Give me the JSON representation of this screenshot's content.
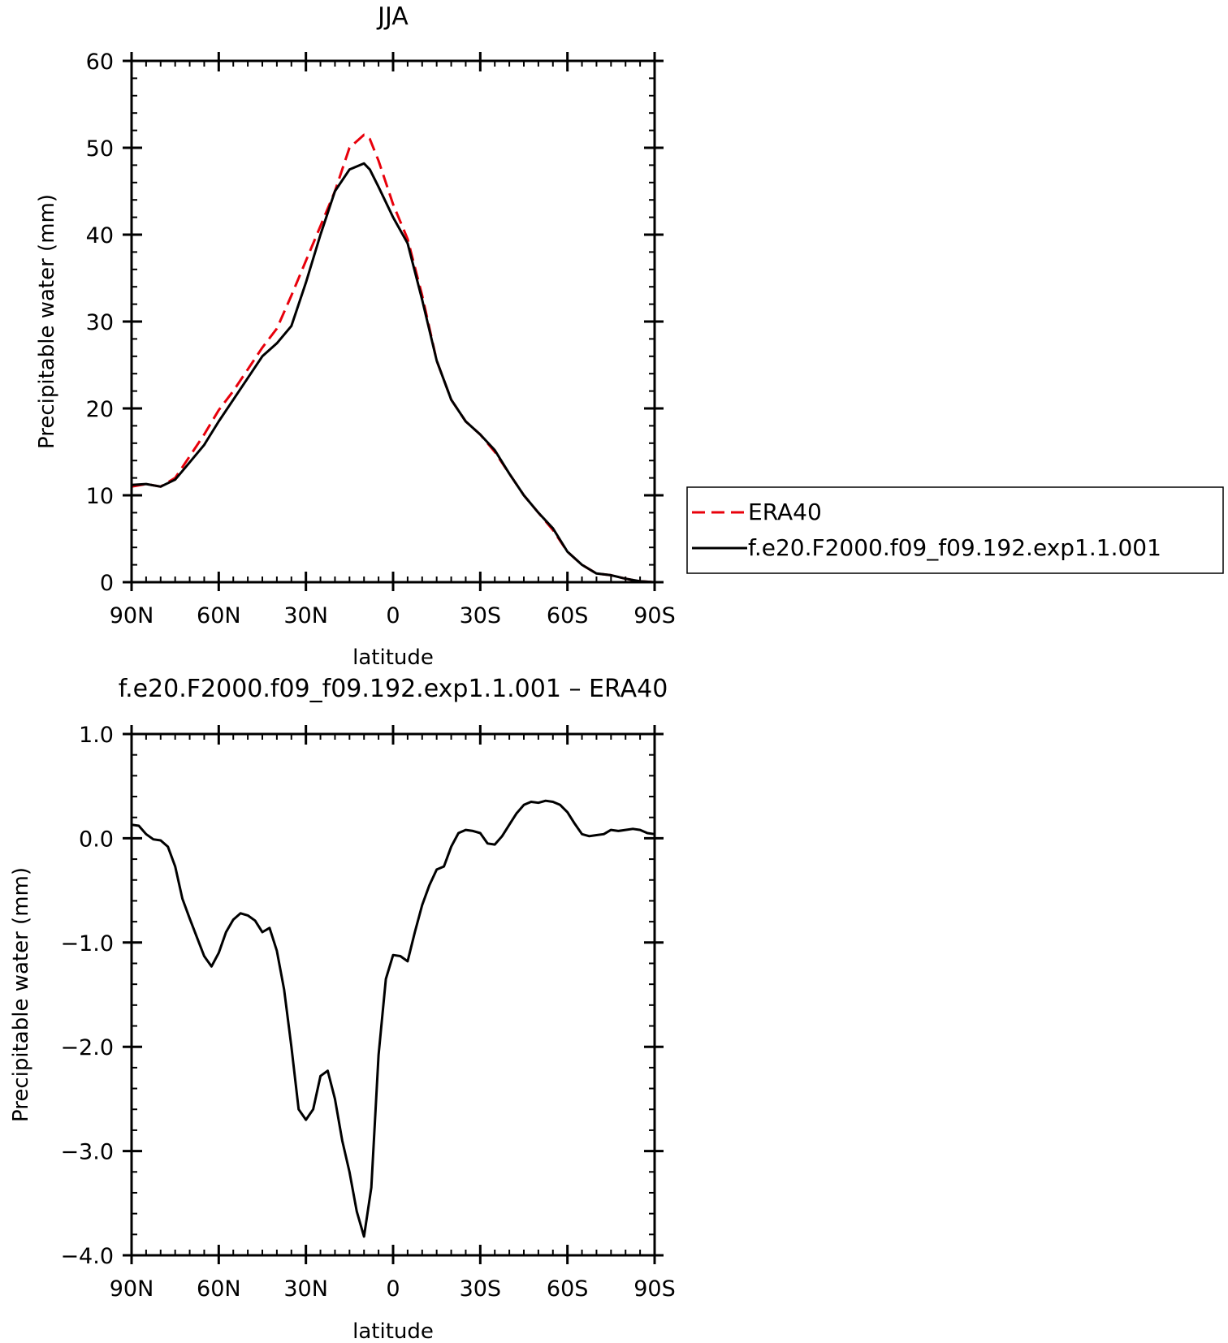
{
  "chart_data": [
    {
      "type": "line",
      "title": "JJA",
      "xlabel": "latitude",
      "ylabel": "Precipitable water (mm)",
      "xlim": [
        90,
        -90
      ],
      "ylim": [
        0,
        60
      ],
      "x_ticks": [
        90,
        60,
        30,
        0,
        -30,
        -60,
        -90
      ],
      "x_tick_labels": [
        "90N",
        "60N",
        "30N",
        "0",
        "30S",
        "60S",
        "90S"
      ],
      "y_ticks": [
        0,
        10,
        20,
        30,
        40,
        50,
        60
      ],
      "y_tick_labels": [
        "0",
        "10",
        "20",
        "30",
        "40",
        "50",
        "60"
      ],
      "legend_position": "right",
      "series": [
        {
          "name": "ERA40",
          "color": "#e8000b",
          "dash": "dashed",
          "x": [
            90,
            85,
            80,
            75,
            70,
            65,
            60,
            55,
            50,
            45,
            40,
            35,
            30,
            25,
            20,
            15,
            10,
            8,
            5,
            0,
            -5,
            -10,
            -15,
            -20,
            -25,
            -30,
            -35,
            -40,
            -45,
            -50,
            -55,
            -60,
            -65,
            -70,
            -75,
            -80,
            -85,
            -90
          ],
          "values": [
            11.0,
            11.3,
            11.0,
            12.0,
            14.5,
            17.0,
            19.8,
            22.0,
            24.5,
            27.0,
            29.2,
            33.0,
            37.0,
            41.0,
            45.0,
            50.0,
            51.5,
            51.0,
            48.5,
            43.5,
            39.5,
            33.0,
            25.5,
            21.0,
            18.5,
            17.0,
            15.0,
            12.5,
            10.0,
            8.0,
            6.0,
            3.5,
            2.0,
            1.0,
            0.8,
            0.4,
            0.1,
            0.0
          ]
        },
        {
          "name": "f.e20.F2000.f09_f09.192.exp1.1.001",
          "color": "#000000",
          "dash": "solid",
          "x": [
            90,
            85,
            80,
            75,
            70,
            65,
            60,
            55,
            50,
            45,
            40,
            35,
            30,
            25,
            20,
            15,
            10,
            8,
            5,
            0,
            -5,
            -10,
            -15,
            -20,
            -25,
            -30,
            -35,
            -40,
            -45,
            -50,
            -55,
            -60,
            -65,
            -70,
            -75,
            -80,
            -85,
            -90
          ],
          "values": [
            11.2,
            11.3,
            11.0,
            11.8,
            13.8,
            15.8,
            18.5,
            21.0,
            23.5,
            26.0,
            27.5,
            29.5,
            34.5,
            40.0,
            45.0,
            47.5,
            48.2,
            47.5,
            45.5,
            42.0,
            39.0,
            32.5,
            25.5,
            21.0,
            18.5,
            17.0,
            15.2,
            12.5,
            10.0,
            8.0,
            6.2,
            3.5,
            2.0,
            1.0,
            0.8,
            0.4,
            0.1,
            0.0
          ]
        }
      ]
    },
    {
      "type": "line",
      "title": "f.e20.F2000.f09_f09.192.exp1.1.001 – ERA40",
      "xlabel": "latitude",
      "ylabel": "Precipitable water (mm)",
      "xlim": [
        90,
        -90
      ],
      "ylim": [
        -4.0,
        1.0
      ],
      "x_ticks": [
        90,
        60,
        30,
        0,
        -30,
        -60,
        -90
      ],
      "x_tick_labels": [
        "90N",
        "60N",
        "30N",
        "0",
        "30S",
        "60S",
        "90S"
      ],
      "y_ticks": [
        -4.0,
        -3.0,
        -2.0,
        -1.0,
        0.0,
        1.0
      ],
      "y_tick_labels": [
        "−4.0",
        "−3.0",
        "−2.0",
        "−1.0",
        "0.0",
        "1.0"
      ],
      "series": [
        {
          "color": "#000000",
          "dash": "solid",
          "x": [
            90,
            87.5,
            85,
            82.5,
            80,
            77.5,
            75,
            72.5,
            70,
            67.5,
            65,
            62.5,
            60,
            57.5,
            55,
            52.5,
            50,
            47.5,
            45,
            42.5,
            40,
            37.5,
            35,
            32.5,
            30,
            27.5,
            25,
            22.5,
            20,
            17.5,
            15,
            12.5,
            10,
            7.5,
            5,
            2.5,
            0,
            -2.5,
            -5,
            -7.5,
            -10,
            -12.5,
            -15,
            -17.5,
            -20,
            -22.5,
            -25,
            -27.5,
            -30,
            -32.5,
            -35,
            -37.5,
            -40,
            -42.5,
            -45,
            -47.5,
            -50,
            -52.5,
            -55,
            -57.5,
            -60,
            -62.5,
            -65,
            -67.5,
            -70,
            -72.5,
            -75,
            -77.5,
            -80,
            -82.5,
            -85,
            -87.5,
            -90
          ],
          "values": [
            0.13,
            0.12,
            0.04,
            -0.01,
            -0.02,
            -0.08,
            -0.27,
            -0.58,
            -0.77,
            -0.95,
            -1.13,
            -1.23,
            -1.1,
            -0.9,
            -0.78,
            -0.72,
            -0.74,
            -0.79,
            -0.9,
            -0.86,
            -1.08,
            -1.45,
            -2.0,
            -2.6,
            -2.7,
            -2.6,
            -2.28,
            -2.23,
            -2.5,
            -2.9,
            -3.2,
            -3.58,
            -3.82,
            -3.35,
            -2.08,
            -1.35,
            -1.12,
            -1.13,
            -1.18,
            -0.9,
            -0.64,
            -0.45,
            -0.3,
            -0.27,
            -0.08,
            0.05,
            0.08,
            0.07,
            0.05,
            -0.05,
            -0.06,
            0.02,
            0.13,
            0.24,
            0.32,
            0.35,
            0.34,
            0.36,
            0.35,
            0.32,
            0.25,
            0.14,
            0.04,
            0.02,
            0.03,
            0.04,
            0.08,
            0.07,
            0.08,
            0.09,
            0.08,
            0.05,
            0.04
          ]
        }
      ]
    }
  ]
}
